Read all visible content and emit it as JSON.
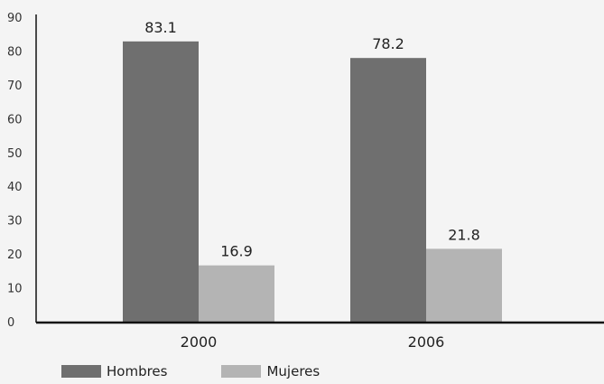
{
  "colors": {
    "Hombres": "#6f6f6f",
    "Mujeres": "#b4b4b4",
    "axis": "#111111"
  },
  "chart_data": {
    "type": "bar",
    "title": "",
    "xlabel": "",
    "ylabel": "",
    "categories": [
      "2000",
      "2006"
    ],
    "series": [
      {
        "name": "Hombres",
        "values": [
          83.1,
          78.2
        ]
      },
      {
        "name": "Mujeres",
        "values": [
          16.9,
          21.8
        ]
      }
    ],
    "data_labels": [
      [
        "83.1",
        "78.2"
      ],
      [
        "16.9",
        "21.8"
      ]
    ],
    "ylim": [
      0,
      90
    ],
    "yticks": [
      "0",
      "10",
      "20",
      "30",
      "40",
      "50",
      "60",
      "70",
      "80",
      "90"
    ],
    "grid": false,
    "legend_position": "bottom-left"
  },
  "legend": {
    "items": [
      "Hombres",
      "Mujeres"
    ]
  }
}
